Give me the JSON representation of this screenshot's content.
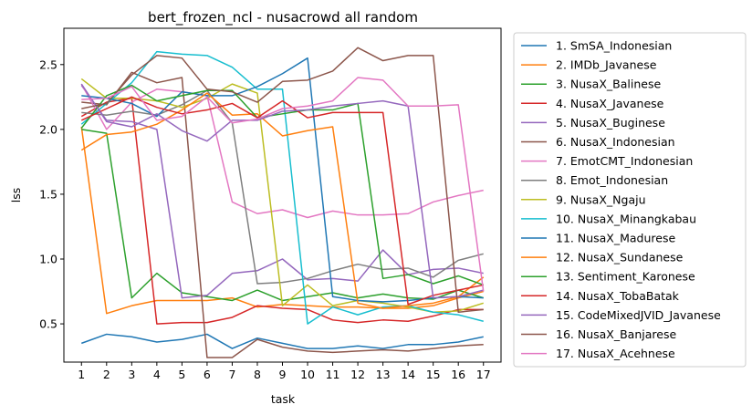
{
  "chart_data": {
    "type": "line",
    "title": "bert_frozen_ncl - nusacrowd all random",
    "xlabel": "task",
    "ylabel": "lss",
    "x": [
      1,
      2,
      3,
      4,
      5,
      6,
      7,
      8,
      9,
      10,
      11,
      12,
      13,
      14,
      15,
      16,
      17
    ],
    "xlim": [
      0.3,
      17.7
    ],
    "ylim": [
      0.205,
      2.78
    ],
    "yticks": [
      0.5,
      1.0,
      1.5,
      2.0,
      2.5
    ],
    "ytick_labels": [
      "0.5",
      "1.0",
      "1.5",
      "2.0",
      "2.5"
    ],
    "xtick_labels": [
      "1",
      "2",
      "3",
      "4",
      "5",
      "6",
      "7",
      "8",
      "9",
      "10",
      "11",
      "12",
      "13",
      "14",
      "15",
      "16",
      "17"
    ],
    "grid": false,
    "legend_position": "outside-right",
    "series": [
      {
        "name": "1. SmSA_Indonesian",
        "color": "#1f77b4",
        "values": [
          0.35,
          0.42,
          0.4,
          0.36,
          0.38,
          0.42,
          0.31,
          0.39,
          0.35,
          0.31,
          0.31,
          0.33,
          0.31,
          0.34,
          0.34,
          0.36,
          0.4
        ]
      },
      {
        "name": "2. IMDb_Javanese",
        "color": "#ff7f0e",
        "values": [
          2.02,
          0.58,
          0.64,
          0.68,
          0.68,
          0.68,
          0.7,
          0.63,
          0.65,
          0.64,
          0.63,
          0.63,
          0.62,
          0.62,
          0.64,
          0.7,
          0.75
        ]
      },
      {
        "name": "3. NusaX_Balinese",
        "color": "#2ca02c",
        "values": [
          2.0,
          1.97,
          0.7,
          0.89,
          0.74,
          0.71,
          0.68,
          0.76,
          0.68,
          0.71,
          0.74,
          0.7,
          0.73,
          0.7,
          0.69,
          0.76,
          0.7
        ]
      },
      {
        "name": "4. NusaX_Javanese",
        "color": "#d62728",
        "values": [
          2.1,
          2.21,
          2.24,
          0.5,
          0.51,
          0.51,
          0.55,
          0.64,
          0.62,
          0.61,
          0.53,
          0.51,
          0.53,
          0.52,
          0.56,
          0.61,
          0.61
        ]
      },
      {
        "name": "5. NusaX_Buginese",
        "color": "#9467bd",
        "values": [
          2.34,
          2.07,
          2.06,
          2.0,
          0.7,
          0.72,
          0.89,
          0.91,
          1.0,
          0.84,
          0.85,
          0.83,
          1.07,
          0.88,
          0.92,
          0.93,
          0.89
        ]
      },
      {
        "name": "6. NusaX_Indonesian",
        "color": "#8c564b",
        "values": [
          2.21,
          2.19,
          2.44,
          2.36,
          2.4,
          0.24,
          0.24,
          0.38,
          0.32,
          0.29,
          0.28,
          0.29,
          0.3,
          0.29,
          0.31,
          0.33,
          0.34
        ]
      },
      {
        "name": "7. EmotCMT_Indonesian",
        "color": "#e377c2",
        "values": [
          2.35,
          2.0,
          2.21,
          2.31,
          2.29,
          2.26,
          1.44,
          1.35,
          1.38,
          1.32,
          1.37,
          1.34,
          1.34,
          1.35,
          1.44,
          1.49,
          1.53
        ]
      },
      {
        "name": "8. Emot_Indonesian",
        "color": "#7f7f7f",
        "values": [
          2.13,
          2.11,
          2.14,
          2.11,
          2.19,
          2.3,
          2.05,
          0.81,
          0.82,
          0.85,
          0.91,
          0.96,
          0.92,
          0.93,
          0.86,
          0.99,
          1.04
        ]
      },
      {
        "name": "9. NusaX_Ngaju",
        "color": "#bcbd22",
        "values": [
          2.39,
          2.24,
          2.24,
          2.22,
          2.17,
          2.24,
          2.35,
          2.28,
          0.64,
          0.8,
          0.64,
          0.68,
          0.66,
          0.63,
          0.59,
          0.6,
          0.66
        ]
      },
      {
        "name": "10. NusaX_Minangkabau",
        "color": "#17becf",
        "values": [
          2.04,
          2.2,
          2.36,
          2.6,
          2.58,
          2.57,
          2.48,
          2.31,
          2.31,
          0.5,
          0.63,
          0.57,
          0.63,
          0.64,
          0.59,
          0.57,
          0.52
        ]
      },
      {
        "name": "11. NusaX_Madurese",
        "color": "#1f77b4",
        "values": [
          2.26,
          2.24,
          2.2,
          2.1,
          2.29,
          2.26,
          2.26,
          2.33,
          2.43,
          2.55,
          0.71,
          0.68,
          0.67,
          0.68,
          0.7,
          0.71,
          0.7
        ]
      },
      {
        "name": "12. NusaX_Sundanese",
        "color": "#ff7f0e",
        "values": [
          1.84,
          1.96,
          1.98,
          2.04,
          2.15,
          2.28,
          2.11,
          2.12,
          1.95,
          1.99,
          2.02,
          0.66,
          0.62,
          0.64,
          0.66,
          0.71,
          0.86
        ]
      },
      {
        "name": "13. Sentiment_Karonese",
        "color": "#2ca02c",
        "values": [
          2.01,
          2.26,
          2.34,
          2.22,
          2.26,
          2.3,
          2.3,
          2.09,
          2.12,
          2.15,
          2.15,
          2.2,
          0.85,
          0.88,
          0.81,
          0.87,
          0.8
        ]
      },
      {
        "name": "14. NusaX_TobaBatak",
        "color": "#d62728",
        "values": [
          2.07,
          2.16,
          2.25,
          2.17,
          2.12,
          2.15,
          2.2,
          2.09,
          2.22,
          2.09,
          2.13,
          2.13,
          2.13,
          0.65,
          0.72,
          0.76,
          0.8
        ]
      },
      {
        "name": "15. CodeMixedJVID_Javanese",
        "color": "#9467bd",
        "values": [
          2.35,
          2.06,
          2.02,
          2.12,
          1.99,
          1.91,
          2.07,
          2.07,
          2.14,
          2.15,
          2.18,
          2.2,
          2.22,
          2.18,
          0.7,
          0.71,
          0.76
        ]
      },
      {
        "name": "16. NusaX_Banjarese",
        "color": "#8c564b",
        "values": [
          2.16,
          2.2,
          2.42,
          2.57,
          2.55,
          2.31,
          2.29,
          2.21,
          2.37,
          2.38,
          2.45,
          2.63,
          2.53,
          2.57,
          2.57,
          0.59,
          0.61
        ]
      },
      {
        "name": "17. NusaX_Acehnese",
        "color": "#e377c2",
        "values": [
          2.23,
          2.24,
          2.33,
          2.07,
          2.1,
          2.25,
          2.05,
          2.08,
          2.16,
          2.18,
          2.22,
          2.4,
          2.38,
          2.18,
          2.18,
          2.19,
          0.75
        ]
      }
    ]
  }
}
